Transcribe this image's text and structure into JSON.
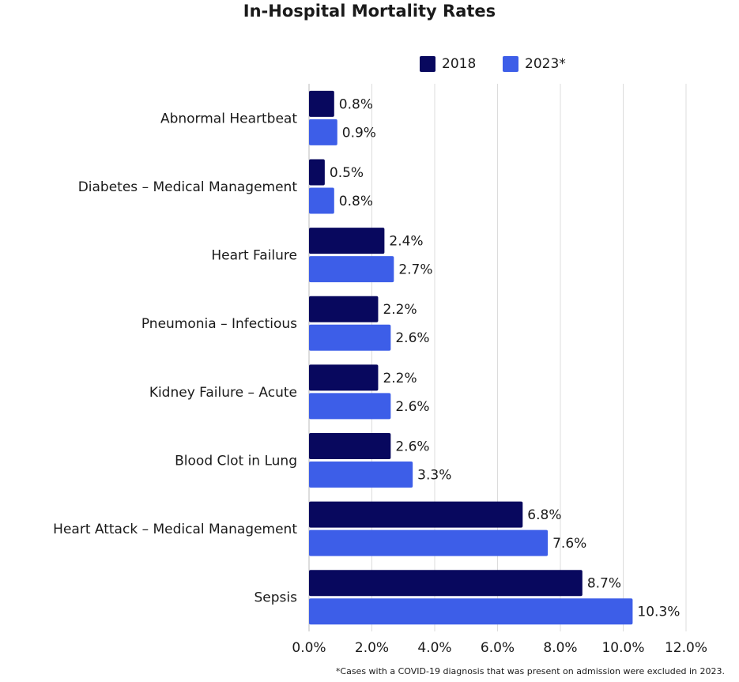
{
  "chart_data": {
    "type": "bar",
    "orientation": "horizontal",
    "title": "In-Hospital Mortality Rates",
    "categories": [
      "Abnormal Heartbeat",
      "Diabetes – Medical Management",
      "Heart Failure",
      "Pneumonia – Infectious",
      "Kidney Failure – Acute",
      "Blood Clot in Lung",
      "Heart Attack – Medical Management",
      "Sepsis"
    ],
    "series": [
      {
        "name": "2018",
        "color": "#08085e",
        "values": [
          0.8,
          0.5,
          2.4,
          2.2,
          2.2,
          2.6,
          6.8,
          8.7
        ],
        "labels": [
          "0.8%",
          "0.5%",
          "2.4%",
          "2.2%",
          "2.2%",
          "2.6%",
          "6.8%",
          "8.7%"
        ]
      },
      {
        "name": "2023*",
        "color": "#3d5ee8",
        "values": [
          0.9,
          0.8,
          2.7,
          2.6,
          2.6,
          3.3,
          7.6,
          10.3
        ],
        "labels": [
          "0.9%",
          "0.8%",
          "2.7%",
          "2.6%",
          "2.6%",
          "3.3%",
          "7.6%",
          "10.3%"
        ]
      }
    ],
    "xlim": [
      0,
      12
    ],
    "xticks": [
      0,
      2,
      4,
      6,
      8,
      10,
      12
    ],
    "xtick_labels": [
      "0.0%",
      "2.0%",
      "4.0%",
      "6.0%",
      "8.0%",
      "10.0%",
      "12.0%"
    ],
    "grid": true,
    "legend_position": "top-right",
    "footnote": "*Cases with a COVID-19 diagnosis that was present on admission were excluded in 2023."
  }
}
